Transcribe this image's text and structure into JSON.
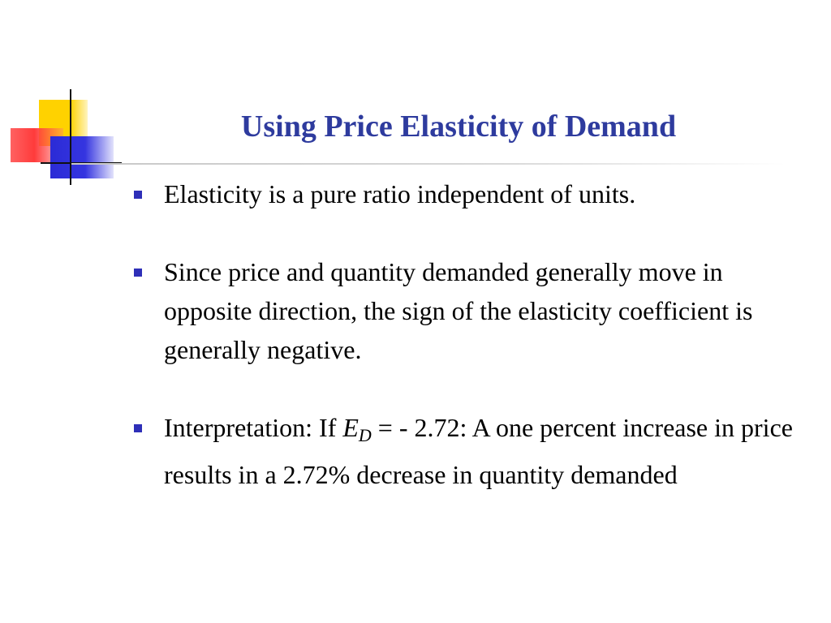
{
  "slide": {
    "title": "Using Price Elasticity of Demand",
    "bullets": [
      {
        "text": "Elasticity is a pure ratio independent of units."
      },
      {
        "text": "Since price and quantity demanded generally move in opposite direction, the sign of the elasticity coefficient is generally negative."
      },
      {
        "prefix": "Interpretation: If ",
        "variable": "E",
        "subscript": "D",
        "suffix": " = - 2.72: A one percent increase  in price results in a 2.72% decrease in quantity demanded"
      }
    ]
  },
  "colors": {
    "title": "#2e3b9e",
    "bullet_marker": "#2e2fb8",
    "logo_yellow": "#ffd200",
    "logo_red": "#ff3b3b",
    "logo_blue": "#2b2bd6"
  }
}
